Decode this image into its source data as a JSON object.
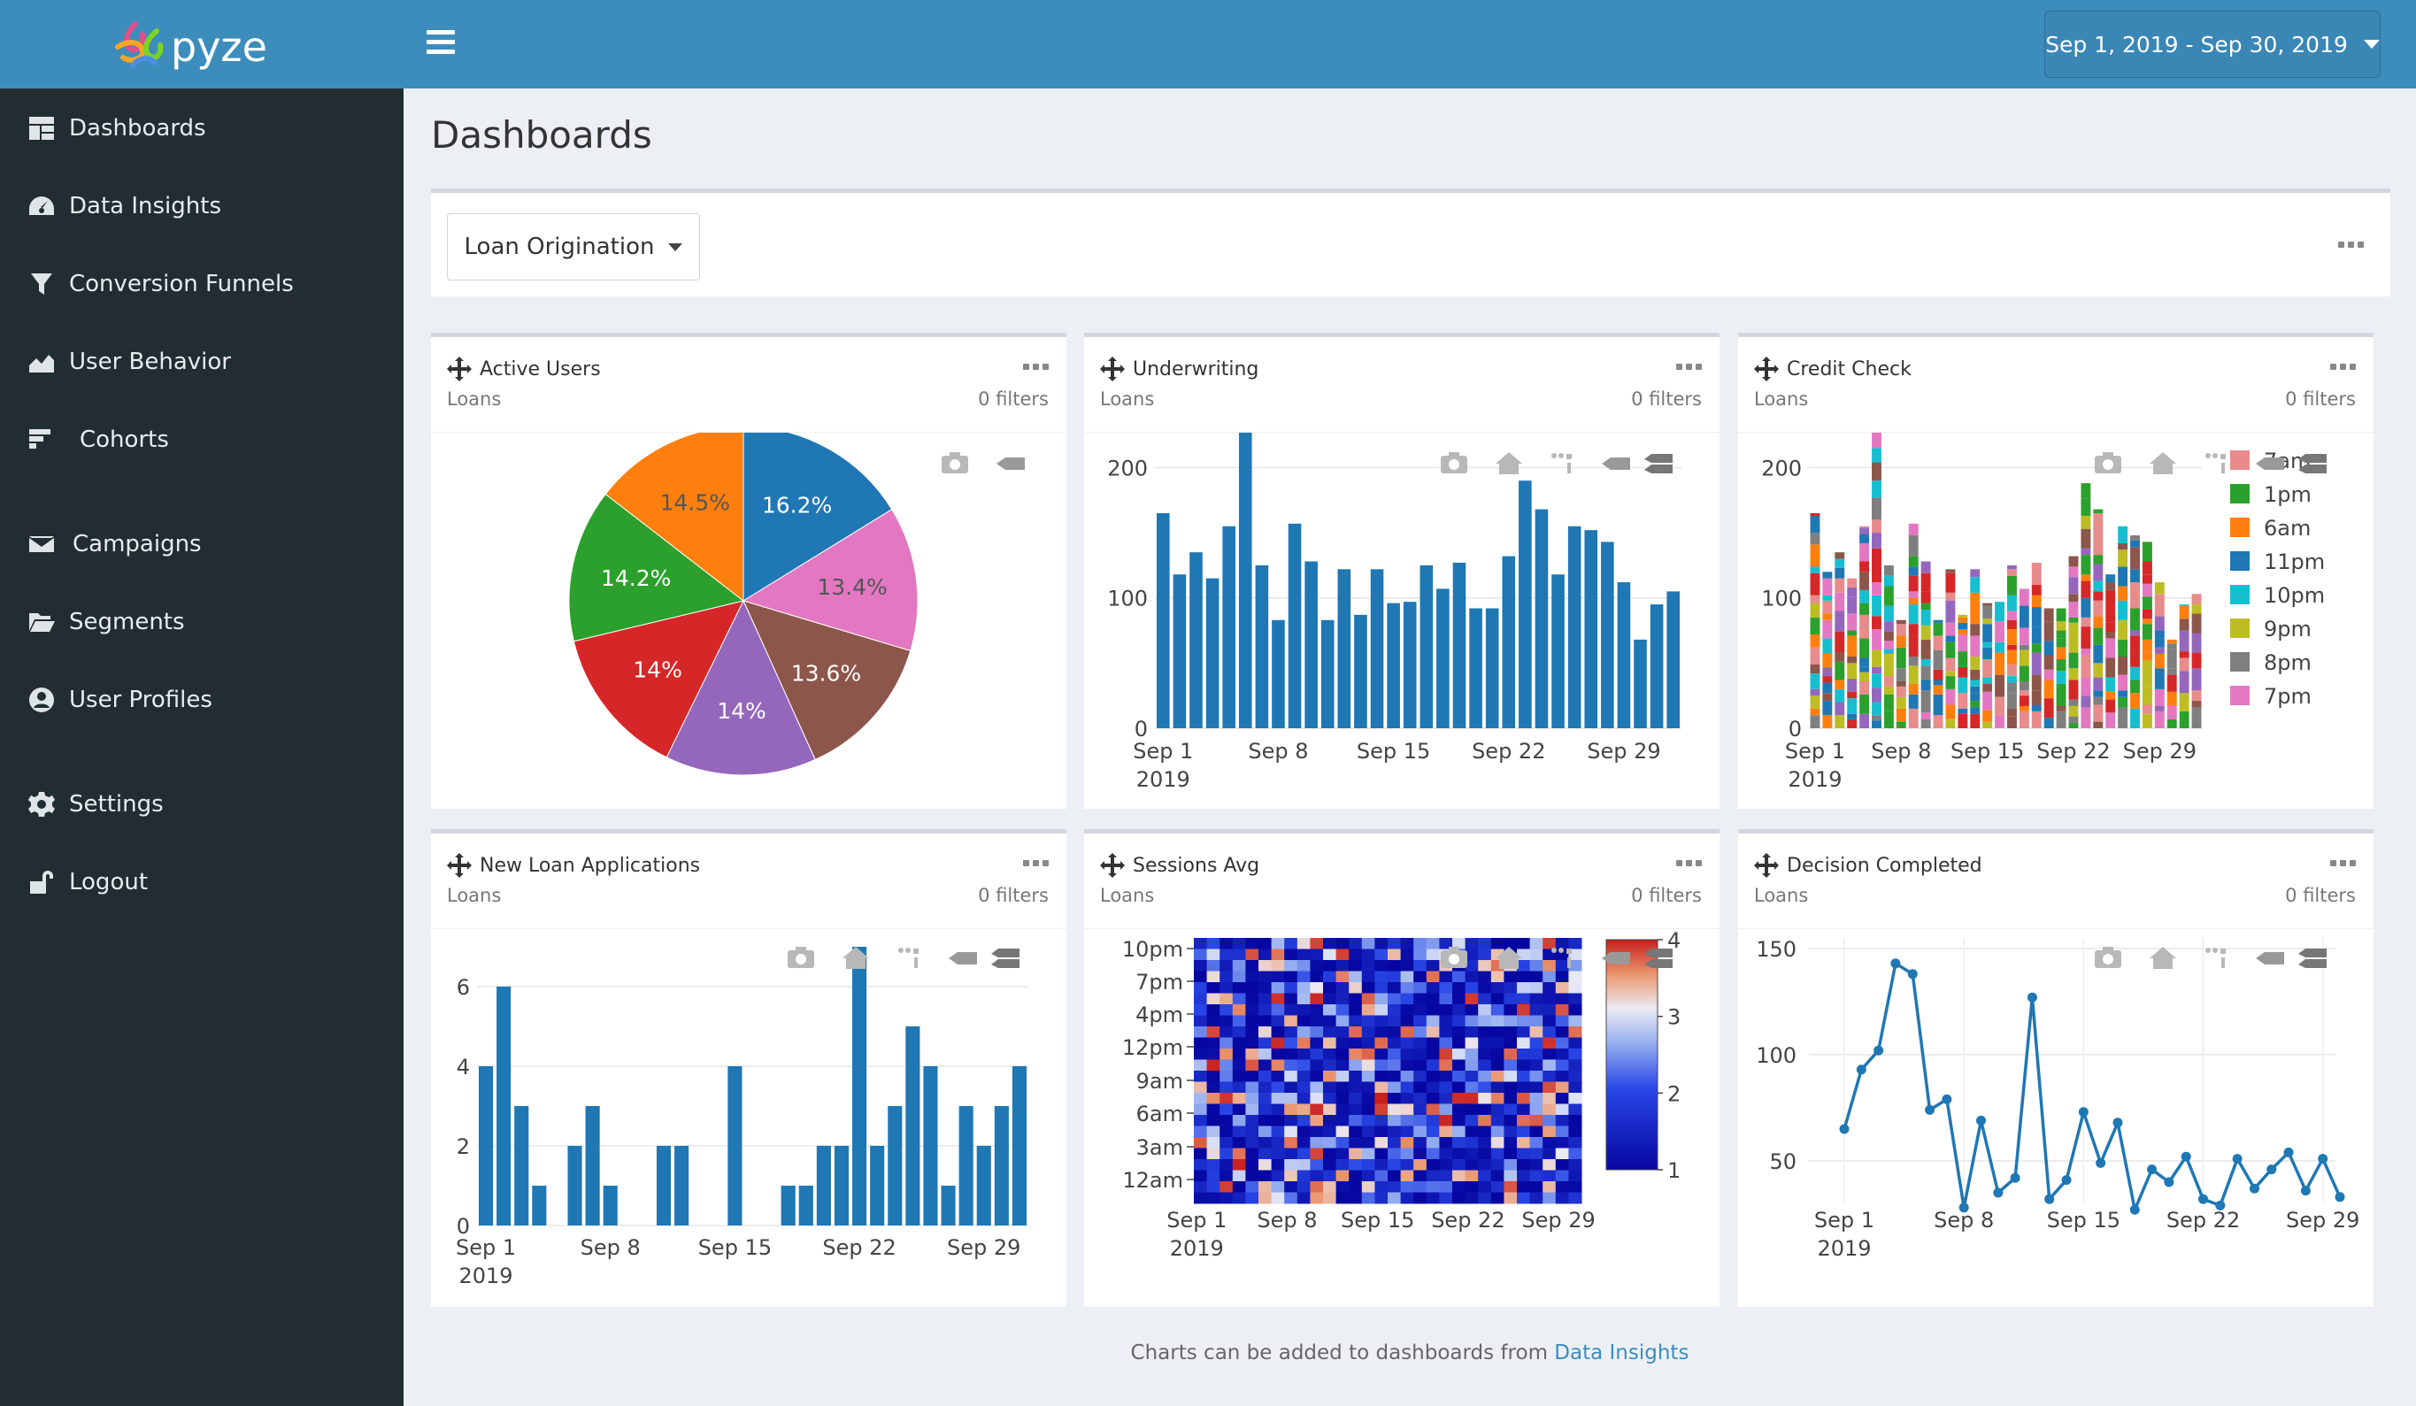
{
  "brand": {
    "logo_text": "pyze"
  },
  "sidebar": {
    "items": [
      {
        "label": "Dashboards",
        "icon": "dashboard-icon"
      },
      {
        "label": "Data Insights",
        "icon": "gauge-icon"
      },
      {
        "label": "Conversion Funnels",
        "icon": "funnel-icon"
      },
      {
        "label": "User Behavior",
        "icon": "area-chart-icon"
      },
      {
        "label": "Cohorts",
        "icon": "cohorts-icon"
      },
      {
        "label": "Campaigns",
        "icon": "envelope-icon"
      },
      {
        "label": "Segments",
        "icon": "folder-open-icon"
      },
      {
        "label": "User Profiles",
        "icon": "user-circle-icon"
      },
      {
        "label": "Settings",
        "icon": "gear-icon"
      },
      {
        "label": "Logout",
        "icon": "unlock-icon"
      }
    ]
  },
  "header": {
    "date_range": "Sep 1, 2019 - Sep 30, 2019"
  },
  "main": {
    "title": "Dashboards",
    "dashboard_select": "Loan Origination",
    "footer_text": "Charts can be added to dashboards from ",
    "footer_link": "Data Insights"
  },
  "panels": [
    {
      "title": "Active Users",
      "subtitle": "Loans",
      "filters": "0 filters"
    },
    {
      "title": "Underwriting",
      "subtitle": "Loans",
      "filters": "0 filters"
    },
    {
      "title": "Credit Check",
      "subtitle": "Loans",
      "filters": "0 filters"
    },
    {
      "title": "New Loan Applications",
      "subtitle": "Loans",
      "filters": "0 filters"
    },
    {
      "title": "Sessions Avg",
      "subtitle": "Loans",
      "filters": "0 filters"
    },
    {
      "title": "Decision Completed",
      "subtitle": "Loans",
      "filters": "0 filters"
    }
  ],
  "chart_data": [
    {
      "type": "pie",
      "labels": [
        "16.2%",
        "13.4%",
        "13.6%",
        "14%",
        "14%",
        "14.2%",
        "14.5%"
      ],
      "values": [
        16.2,
        13.4,
        13.6,
        14.0,
        14.0,
        14.2,
        14.5
      ],
      "colors": [
        "#1f77b4",
        "#e377c2",
        "#8c564b",
        "#9467bd",
        "#d62728",
        "#2ca02c",
        "#ff7f0e"
      ]
    },
    {
      "type": "bar",
      "x_ticks": [
        "Sep 1",
        "Sep 8",
        "Sep 15",
        "Sep 22",
        "Sep 29"
      ],
      "x_tick_year": "2019",
      "y_ticks": [
        0,
        100,
        200
      ],
      "ylim": [
        0,
        220
      ],
      "values": [
        165,
        118,
        135,
        115,
        155,
        238,
        125,
        83,
        157,
        128,
        83,
        122,
        87,
        122,
        96,
        97,
        125,
        107,
        127,
        92,
        92,
        132,
        190,
        168,
        118,
        155,
        152,
        143,
        112,
        68,
        95,
        105
      ],
      "color": "#1f77b4"
    },
    {
      "type": "bar",
      "stacked": true,
      "x_ticks": [
        "Sep 1",
        "Sep 8",
        "Sep 15",
        "Sep 22",
        "Sep 29"
      ],
      "x_tick_year": "2019",
      "y_ticks": [
        0,
        100,
        200
      ],
      "ylim": [
        0,
        220
      ],
      "totals": [
        165,
        120,
        135,
        115,
        155,
        240,
        125,
        83,
        157,
        128,
        83,
        122,
        87,
        122,
        96,
        97,
        125,
        107,
        127,
        92,
        92,
        132,
        188,
        168,
        118,
        155,
        148,
        143,
        112,
        68,
        95,
        103
      ],
      "series_colors": [
        "#e88b8b",
        "#2ca02c",
        "#ff7f0e",
        "#1f77b4",
        "#17becf",
        "#bcbd22",
        "#7f7f7f",
        "#e377c2",
        "#8c564b",
        "#9467bd",
        "#d62728"
      ],
      "legend": [
        {
          "name": "7am",
          "color": "#e88b8b"
        },
        {
          "name": "1pm",
          "color": "#2ca02c"
        },
        {
          "name": "6am",
          "color": "#ff7f0e"
        },
        {
          "name": "11pm",
          "color": "#1f77b4"
        },
        {
          "name": "10pm",
          "color": "#17becf"
        },
        {
          "name": "9pm",
          "color": "#bcbd22"
        },
        {
          "name": "8pm",
          "color": "#7f7f7f"
        },
        {
          "name": "7pm",
          "color": "#e377c2"
        }
      ]
    },
    {
      "type": "bar",
      "x_ticks": [
        "Sep 1",
        "Sep 8",
        "Sep 15",
        "Sep 22",
        "Sep 29"
      ],
      "x_tick_year": "2019",
      "y_ticks": [
        0,
        2,
        4,
        6
      ],
      "ylim": [
        0,
        7
      ],
      "values": [
        4,
        6,
        3,
        1,
        0,
        2,
        3,
        1,
        0,
        0,
        2,
        2,
        0,
        0,
        4,
        0,
        0,
        1,
        1,
        2,
        2,
        7,
        2,
        3,
        5,
        4,
        1,
        3,
        2,
        3,
        4
      ],
      "color": "#1f77b4"
    },
    {
      "type": "heatmap",
      "x_ticks": [
        "Sep 1",
        "Sep 8",
        "Sep 15",
        "Sep 22",
        "Sep 29"
      ],
      "x_tick_year": "2019",
      "y_ticks": [
        "10pm",
        "7pm",
        "4pm",
        "12pm",
        "9am",
        "6am",
        "3am",
        "12am"
      ],
      "colorbar_ticks": [
        1,
        2,
        3,
        4
      ],
      "zlim": [
        1,
        4
      ],
      "columns": 30,
      "rows": 24
    },
    {
      "type": "line",
      "x_ticks": [
        "Sep 1",
        "Sep 8",
        "Sep 15",
        "Sep 22",
        "Sep 29"
      ],
      "x_tick_year": "2019",
      "y_ticks": [
        50,
        100,
        150
      ],
      "ylim": [
        30,
        155
      ],
      "values": [
        65,
        93,
        102,
        143,
        138,
        74,
        79,
        28,
        69,
        35,
        42,
        127,
        32,
        41,
        73,
        49,
        68,
        27,
        46,
        40,
        52,
        32,
        29,
        51,
        37,
        46,
        54,
        36,
        51,
        33
      ],
      "color": "#1f77b4"
    }
  ]
}
